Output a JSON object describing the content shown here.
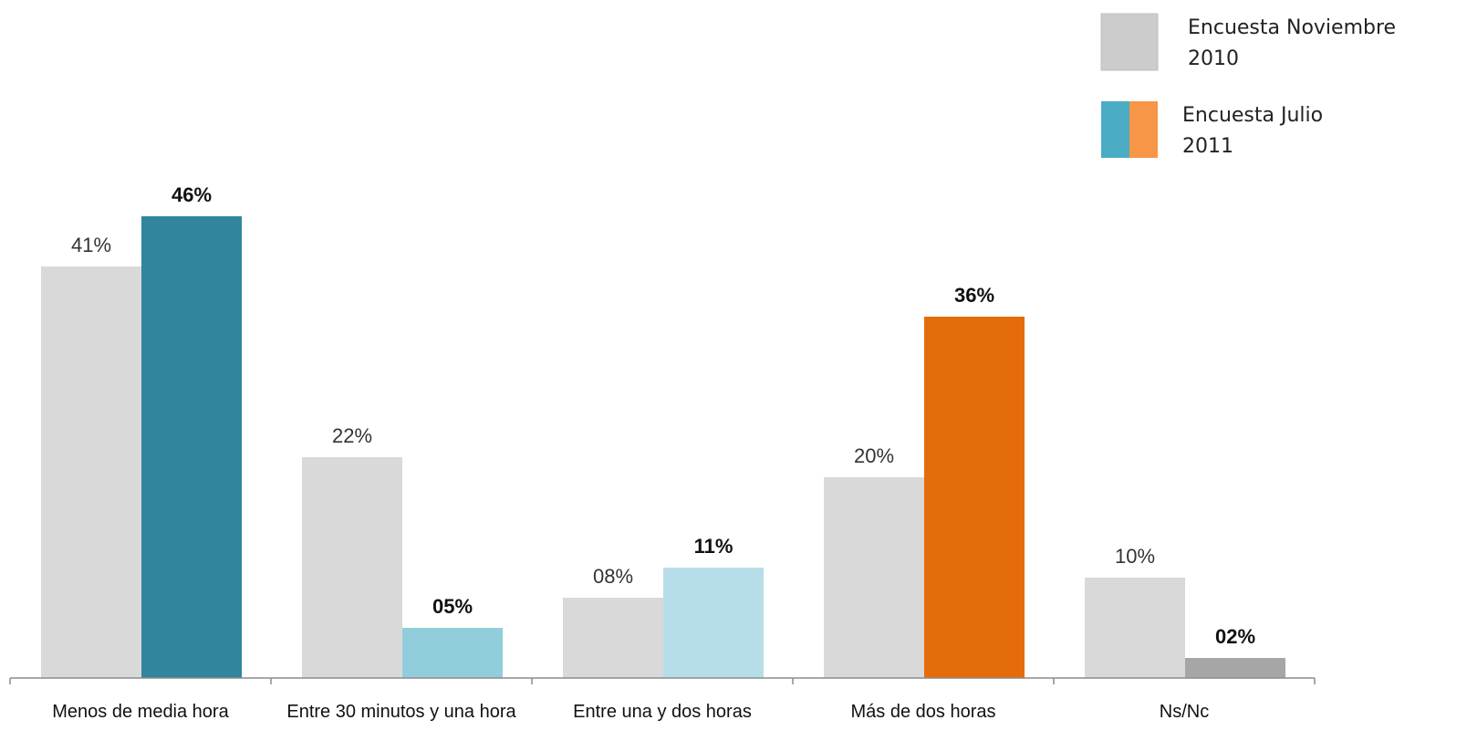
{
  "chart_data": {
    "type": "bar",
    "categories": [
      "Menos de media hora",
      "Entre 30 minutos y una hora",
      "Entre una y dos horas",
      "Más de dos horas",
      "Ns/Nc"
    ],
    "ylim": [
      0,
      50
    ],
    "grid": false,
    "legend_position": "top-right",
    "series": [
      {
        "name": "Encuesta Noviembre 2010",
        "values": [
          41,
          22,
          8,
          20,
          10
        ],
        "labels": [
          "41%",
          "22%",
          "08%",
          "20%",
          "10%"
        ],
        "color": "#d9d9d9",
        "bold_labels": false
      },
      {
        "name": "Encuesta Julio 2011",
        "values": [
          46,
          5,
          11,
          36,
          2
        ],
        "labels": [
          "46%",
          "05%",
          "11%",
          "36%",
          "02%"
        ],
        "colors": [
          "#31859c",
          "#92cddc",
          "#b7dee8",
          "#e46c0a",
          "#a6a6a6"
        ],
        "bold_labels": true
      }
    ],
    "legend": [
      {
        "lines": [
          "Encuesta Noviembre",
          "2010"
        ],
        "colors": [
          "#cccccc"
        ]
      },
      {
        "lines": [
          "Encuesta Julio",
          "2011"
        ],
        "colors": [
          "#4bacc6",
          "#f79646"
        ]
      }
    ]
  }
}
